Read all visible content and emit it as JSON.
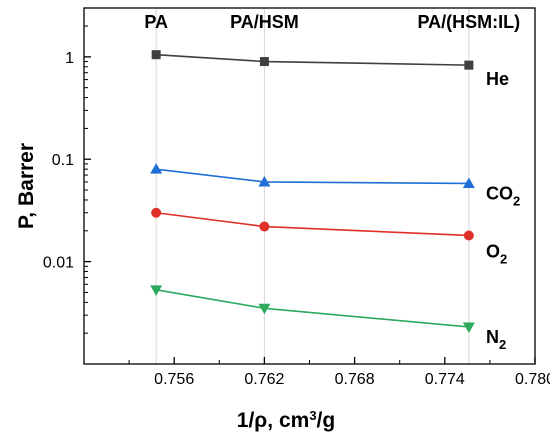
{
  "chart_data": {
    "type": "line",
    "title": "",
    "xlabel": "1/ρ, cm³/g",
    "ylabel": "P, Barrer",
    "xlim": [
      0.75,
      0.78
    ],
    "ylim": [
      0.001,
      3
    ],
    "yscale": "log",
    "x_ticks": [
      {
        "value": 0.756,
        "label": "0.756"
      },
      {
        "value": 0.762,
        "label": "0.762"
      },
      {
        "value": 0.768,
        "label": "0.768"
      },
      {
        "value": 0.774,
        "label": "0.774"
      },
      {
        "value": 0.78,
        "label": "0.780"
      }
    ],
    "y_ticks": [
      {
        "value": 1,
        "label": "1"
      },
      {
        "value": 0.1,
        "label": "0.1"
      },
      {
        "value": 0.01,
        "label": "0.01"
      }
    ],
    "grid": "vertical lines at sample positions",
    "sample_labels": [
      {
        "x": 0.7548,
        "label": "PA"
      },
      {
        "x": 0.762,
        "label": "PA/HSM"
      },
      {
        "x": 0.7756,
        "label": "PA/(HSM:IL)"
      }
    ],
    "x": [
      0.7548,
      0.762,
      0.7756
    ],
    "series": [
      {
        "name": "He",
        "label_main": "He",
        "label_sub": "",
        "color": "#404040",
        "marker": "square",
        "values": [
          1.05,
          0.9,
          0.83
        ]
      },
      {
        "name": "CO2",
        "label_main": "CO",
        "label_sub": "2",
        "color": "#1f6fd6",
        "marker": "triangle-up",
        "values": [
          0.08,
          0.06,
          0.058
        ]
      },
      {
        "name": "O2",
        "label_main": "O",
        "label_sub": "2",
        "color": "#e0302a",
        "marker": "circle",
        "values": [
          0.03,
          0.022,
          0.018
        ]
      },
      {
        "name": "N2",
        "label_main": "N",
        "label_sub": "2",
        "color": "#2eaa5e",
        "marker": "triangle-down",
        "values": [
          0.0053,
          0.0035,
          0.0023
        ]
      }
    ]
  }
}
